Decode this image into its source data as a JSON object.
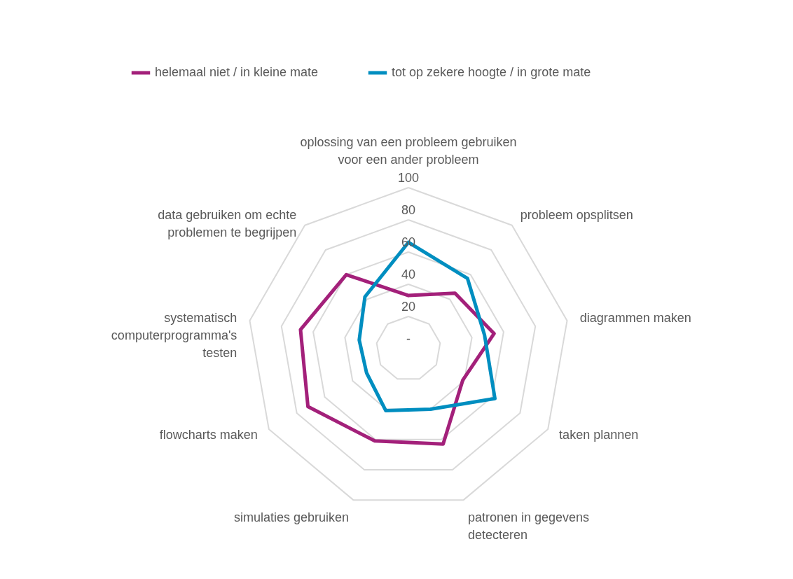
{
  "chart_data": {
    "type": "radar",
    "categories": [
      "oplossing van een probleem gebruiken voor een ander probleem",
      "probleem opsplitsen",
      "diagrammen maken",
      "taken plannen",
      "patronen in gegevens detecteren",
      "simulaties gebruiken",
      "flowcharts maken",
      "systematisch computerprogramma's testen",
      "data gebruiken om echte problemen te begrijpen"
    ],
    "series": [
      {
        "name": "helemaal niet / in kleine mate",
        "color": "#a3207a",
        "values": [
          33,
          45,
          54,
          39,
          63,
          61,
          72,
          68,
          60
        ]
      },
      {
        "name": "tot op zekere hoogte / in grote mate",
        "color": "#008ec0",
        "values": [
          66,
          57,
          48,
          62,
          40,
          41,
          30,
          31,
          42
        ]
      }
    ],
    "ylim": [
      0,
      100
    ],
    "yticks": [
      {
        "value": 0,
        "label": "-"
      },
      20,
      40,
      60,
      80,
      100
    ],
    "grid": true,
    "legend": "top"
  }
}
